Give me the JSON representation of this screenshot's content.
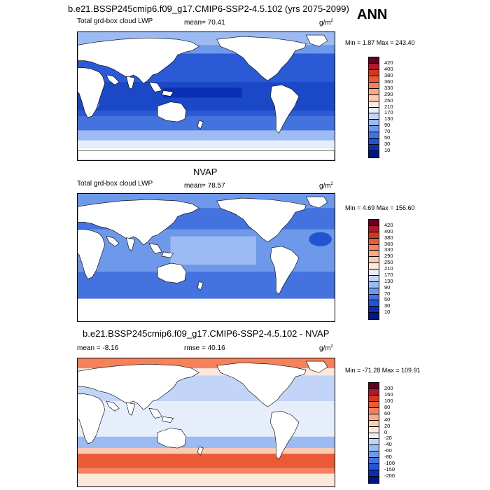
{
  "main_title": "b.e21.BSSP245cmip6.f09_g17.CMIP6-SSP2-4.5.102 (yrs 2075-2099)",
  "season": "ANN",
  "units_base": "g/m",
  "units_exp": "2",
  "panels": [
    {
      "heading": "",
      "left_label": "Total grd-box cloud LWP",
      "center_label": "mean=  70.41",
      "min_max": "Min =   1.87 Max = 243.40",
      "levels": [
        "420",
        "400",
        "380",
        "360",
        "330",
        "290",
        "250",
        "210",
        "170",
        "130",
        "90",
        "70",
        "50",
        "30",
        "10"
      ],
      "colors": [
        "#67001f",
        "#b2182b",
        "#d6361a",
        "#ea5a36",
        "#f4825c",
        "#f9a98a",
        "#fbcbb4",
        "#fde8dc",
        "#e6eefc",
        "#c2d5f8",
        "#9bbbf2",
        "#6e98ea",
        "#4472df",
        "#2153d3",
        "#0a2fb4",
        "#001680"
      ]
    },
    {
      "heading": "NVAP",
      "left_label": "Total grd-box cloud LWP",
      "center_label": "mean=  78.57",
      "min_max": "Min =   4.69 Max = 156.60",
      "levels": [
        "420",
        "400",
        "380",
        "360",
        "330",
        "290",
        "250",
        "210",
        "170",
        "130",
        "90",
        "70",
        "50",
        "30",
        "10"
      ],
      "colors": [
        "#67001f",
        "#b2182b",
        "#d6361a",
        "#ea5a36",
        "#f4825c",
        "#f9a98a",
        "#fbcbb4",
        "#fde8dc",
        "#e6eefc",
        "#c2d5f8",
        "#9bbbf2",
        "#6e98ea",
        "#4472df",
        "#2153d3",
        "#0a2fb4",
        "#001680"
      ]
    },
    {
      "heading": "b.e21.BSSP245cmip6.f09_g17.CMIP6-SSP2-4.5.102 - NVAP",
      "left_label": "mean =  -8.16",
      "center_label": "rmse =  40.16",
      "min_max": "Min = -71.28 Max = 109.91",
      "levels": [
        "200",
        "150",
        "100",
        "80",
        "60",
        "40",
        "20",
        "0",
        "-20",
        "-40",
        "-60",
        "-80",
        "-100",
        "-150",
        "-200"
      ],
      "colors": [
        "#67001f",
        "#b2182b",
        "#d6361a",
        "#ea5a36",
        "#f4825c",
        "#f9a98a",
        "#fbcbb4",
        "#fde8dc",
        "#e6eefc",
        "#c2d5f8",
        "#9bbbf2",
        "#6e98ea",
        "#4472df",
        "#2153d3",
        "#0a2fb4",
        "#001680"
      ]
    }
  ]
}
